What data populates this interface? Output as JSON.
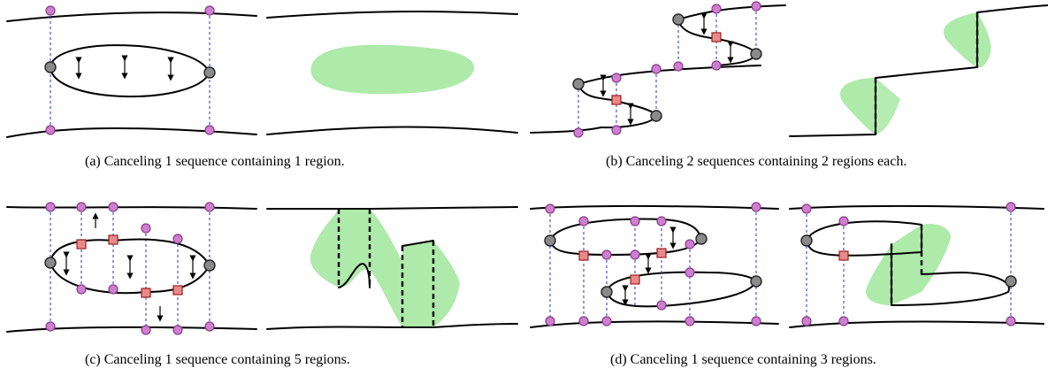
{
  "captions": {
    "a": "(a)  Canceling 1 sequence containing 1 region.",
    "b": "(b)  Canceling 2 sequences containing 2 regions each.",
    "c": "(c)  Canceling 1 sequence containing 5 regions.",
    "d": "(d)  Canceling 1 sequence containing 3 regions."
  },
  "colors": {
    "region_fill": "#aeeaa9",
    "intersection_point": "#cf7fd0",
    "cusp_point": "#8a8a8a",
    "crossing_marker": "#e98a8a",
    "guide_line": "#2233cc"
  },
  "legend_icons": [
    "pink-circle-icon",
    "gray-circle-icon",
    "red-square-icon",
    "double-arrow-icon"
  ]
}
